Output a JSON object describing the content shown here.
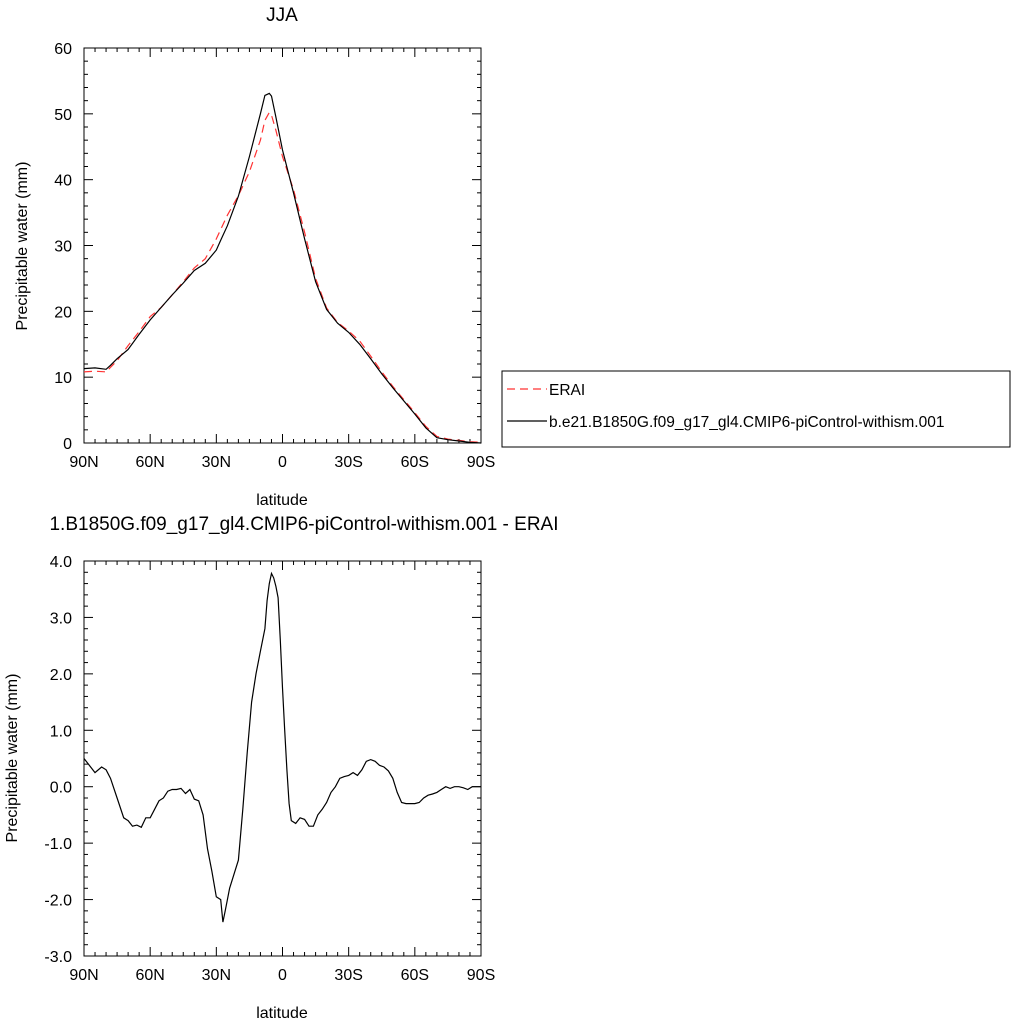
{
  "chart_data": [
    {
      "type": "line",
      "title": "JJA",
      "xlabel": "latitude",
      "ylabel": "Precipitable water (mm)",
      "xlim": [
        90,
        -90
      ],
      "ylim": [
        0,
        60
      ],
      "xticks": [
        90,
        60,
        30,
        0,
        -30,
        -60,
        -90
      ],
      "xtick_labels": [
        "90N",
        "60N",
        "30N",
        "0",
        "30S",
        "60S",
        "90S"
      ],
      "yticks": [
        0,
        10,
        20,
        30,
        40,
        50,
        60
      ],
      "ytick_labels": [
        "0",
        "10",
        "20",
        "30",
        "40",
        "50",
        "60"
      ],
      "grid": false,
      "legend_position": "right",
      "series": [
        {
          "name": "ERAI",
          "color": "#ff3333",
          "dash": "dashed",
          "x": [
            90,
            85,
            80,
            78,
            75,
            70,
            65,
            60,
            55,
            50,
            45,
            40,
            35,
            30,
            25,
            20,
            15,
            10,
            8,
            6,
            5,
            3,
            0,
            -5,
            -10,
            -15,
            -20,
            -25,
            -30,
            -35,
            -40,
            -45,
            -50,
            -55,
            -60,
            -65,
            -70,
            -75,
            -80,
            -85,
            -90
          ],
          "y": [
            10.8,
            10.9,
            10.8,
            11.5,
            12.5,
            14.8,
            16.9,
            19.2,
            20.6,
            22.5,
            24.5,
            26.6,
            28.0,
            31.0,
            34.6,
            37.6,
            41.2,
            46.0,
            49.0,
            50.2,
            49.8,
            47.5,
            43.5,
            38.5,
            32.0,
            25.0,
            20.5,
            18.3,
            17.0,
            15.5,
            13.2,
            10.8,
            8.6,
            6.6,
            4.6,
            2.5,
            1.0,
            0.6,
            0.4,
            0.2,
            0.1
          ]
        },
        {
          "name": "b.e21.B1850G.f09_g17_gl4.CMIP6-piControl-withism.001",
          "color": "#000000",
          "dash": "solid",
          "x": [
            90,
            85,
            80,
            78,
            75,
            70,
            65,
            60,
            55,
            50,
            45,
            40,
            35,
            30,
            28,
            25,
            20,
            15,
            10,
            8,
            6,
            5,
            3,
            0,
            -5,
            -10,
            -15,
            -20,
            -25,
            -30,
            -35,
            -40,
            -45,
            -50,
            -55,
            -60,
            -65,
            -70,
            -75,
            -80,
            -85,
            -90
          ],
          "y": [
            11.3,
            11.4,
            11.2,
            11.8,
            12.8,
            14.2,
            16.5,
            18.7,
            20.6,
            22.5,
            24.3,
            26.2,
            27.3,
            29.3,
            30.8,
            33.0,
            37.5,
            43.5,
            50.0,
            52.8,
            53.1,
            52.7,
            49.5,
            44.5,
            38.0,
            31.0,
            24.5,
            20.3,
            18.2,
            16.8,
            15.0,
            12.8,
            10.5,
            8.4,
            6.4,
            4.4,
            2.3,
            0.8,
            0.5,
            0.3,
            0.1,
            0.0
          ]
        }
      ]
    },
    {
      "type": "line",
      "title": "1.B1850G.f09_g17_gl4.CMIP6-piControl-withism.001 - ERAI",
      "xlabel": "latitude",
      "ylabel": "Precipitable water (mm)",
      "xlim": [
        90,
        -90
      ],
      "ylim": [
        -3,
        4
      ],
      "xticks": [
        90,
        60,
        30,
        0,
        -30,
        -60,
        -90
      ],
      "xtick_labels": [
        "90N",
        "60N",
        "30N",
        "0",
        "30S",
        "60S",
        "90S"
      ],
      "yticks": [
        -3,
        -2,
        -1,
        0,
        1,
        2,
        3,
        4
      ],
      "ytick_labels": [
        "-3.0",
        "-2.0",
        "-1.0",
        "0.0",
        "1.0",
        "2.0",
        "3.0",
        "4.0"
      ],
      "grid": false,
      "series": [
        {
          "color": "#000000",
          "dash": "solid",
          "x": [
            90,
            88,
            85,
            82,
            80,
            78,
            75,
            72,
            70,
            68,
            66,
            64,
            62,
            60,
            58,
            56,
            54,
            52,
            50,
            48,
            46,
            44,
            42,
            40,
            38,
            36,
            34,
            32,
            30,
            28,
            27,
            26,
            25,
            24,
            22,
            20,
            18,
            16,
            14,
            12,
            10,
            8,
            7,
            6,
            5,
            4,
            3,
            2,
            1,
            0,
            -1,
            -2,
            -3,
            -4,
            -6,
            -8,
            -10,
            -12,
            -14,
            -16,
            -18,
            -20,
            -22,
            -24,
            -26,
            -28,
            -30,
            -32,
            -34,
            -36,
            -38,
            -40,
            -42,
            -44,
            -46,
            -48,
            -50,
            -52,
            -54,
            -56,
            -58,
            -60,
            -62,
            -64,
            -66,
            -68,
            -70,
            -72,
            -74,
            -76,
            -78,
            -80,
            -82,
            -84,
            -86,
            -88,
            -90
          ],
          "y": [
            0.5,
            0.4,
            0.25,
            0.35,
            0.3,
            0.15,
            -0.2,
            -0.55,
            -0.6,
            -0.7,
            -0.68,
            -0.72,
            -0.55,
            -0.55,
            -0.4,
            -0.25,
            -0.2,
            -0.08,
            -0.05,
            -0.05,
            -0.03,
            -0.12,
            -0.05,
            -0.22,
            -0.25,
            -0.5,
            -1.1,
            -1.5,
            -1.95,
            -2.0,
            -2.4,
            -2.2,
            -2.0,
            -1.8,
            -1.55,
            -1.3,
            -0.4,
            0.6,
            1.5,
            2.0,
            2.4,
            2.8,
            3.3,
            3.6,
            3.78,
            3.7,
            3.55,
            3.35,
            2.6,
            1.75,
            1.0,
            0.3,
            -0.3,
            -0.6,
            -0.65,
            -0.55,
            -0.58,
            -0.7,
            -0.7,
            -0.5,
            -0.4,
            -0.28,
            -0.1,
            0.0,
            0.15,
            0.18,
            0.2,
            0.25,
            0.2,
            0.3,
            0.45,
            0.48,
            0.45,
            0.38,
            0.35,
            0.28,
            0.15,
            -0.1,
            -0.28,
            -0.3,
            -0.3,
            -0.3,
            -0.28,
            -0.2,
            -0.15,
            -0.13,
            -0.1,
            -0.05,
            0.0,
            -0.03,
            0.0,
            0.0,
            -0.02,
            -0.05,
            0.0,
            0.0,
            0.0
          ]
        }
      ]
    }
  ]
}
